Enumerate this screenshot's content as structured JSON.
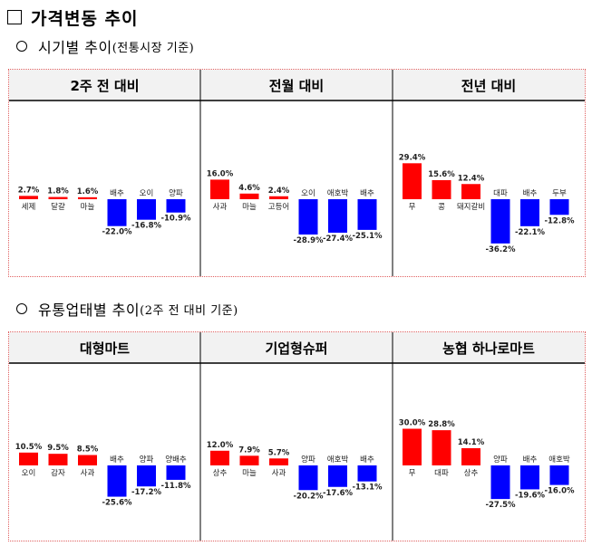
{
  "page": {
    "title": "가격변동 추이",
    "section1": {
      "label": "시기별 추이",
      "note": "(전통시장 기준)"
    },
    "section2": {
      "label": "유통업태별 추이",
      "note": "(2주 전 대비 기준)"
    }
  },
  "colors": {
    "increase": "#ff0000",
    "decrease": "#0000ff"
  },
  "chart_data": [
    {
      "type": "bar",
      "title": "2주 전 대비",
      "categories": [
        "세제",
        "달걀",
        "마늘",
        "배추",
        "오이",
        "양파"
      ],
      "values": [
        2.7,
        1.8,
        1.6,
        -22.0,
        -16.8,
        -10.9
      ],
      "labels": [
        "2.7%",
        "1.8%",
        "1.6%",
        "-22.0%",
        "-16.8%",
        "-10.9%"
      ]
    },
    {
      "type": "bar",
      "title": "전월 대비",
      "categories": [
        "사과",
        "마늘",
        "고등어",
        "오이",
        "애호박",
        "배추"
      ],
      "values": [
        16.0,
        4.6,
        2.4,
        -28.9,
        -27.4,
        -25.1
      ],
      "labels": [
        "16.0%",
        "4.6%",
        "2.4%",
        "-28.9%",
        "-27.4%",
        "-25.1%"
      ]
    },
    {
      "type": "bar",
      "title": "전년 대비",
      "categories": [
        "무",
        "콩",
        "돼지갈비",
        "대파",
        "배추",
        "두부"
      ],
      "values": [
        29.4,
        15.6,
        12.4,
        -36.2,
        -22.1,
        -12.8
      ],
      "labels": [
        "29.4%",
        "15.6%",
        "12.4%",
        "-36.2%",
        "-22.1%",
        "-12.8%"
      ]
    },
    {
      "type": "bar",
      "title": "대형마트",
      "categories": [
        "오이",
        "감자",
        "사과",
        "배추",
        "양파",
        "양배추"
      ],
      "values": [
        10.5,
        9.5,
        8.5,
        -25.6,
        -17.2,
        -11.8
      ],
      "labels": [
        "10.5%",
        "9.5%",
        "8.5%",
        "-25.6%",
        "-17.2%",
        "-11.8%"
      ]
    },
    {
      "type": "bar",
      "title": "기업형슈퍼",
      "categories": [
        "상추",
        "마늘",
        "사과",
        "양파",
        "애호박",
        "배추"
      ],
      "values": [
        12.0,
        7.9,
        5.7,
        -20.2,
        -17.6,
        -13.1
      ],
      "labels": [
        "12.0%",
        "7.9%",
        "5.7%",
        "-20.2%",
        "-17.6%",
        "-13.1%"
      ]
    },
    {
      "type": "bar",
      "title": "농협 하나로마트",
      "categories": [
        "무",
        "대파",
        "상추",
        "양파",
        "배추",
        "애호박"
      ],
      "values": [
        30.0,
        28.8,
        14.1,
        -27.5,
        -19.6,
        -16.0
      ],
      "labels": [
        "30.0%",
        "28.8%",
        "14.1%",
        "-27.5%",
        "-19.6%",
        "-16.0%"
      ]
    }
  ]
}
